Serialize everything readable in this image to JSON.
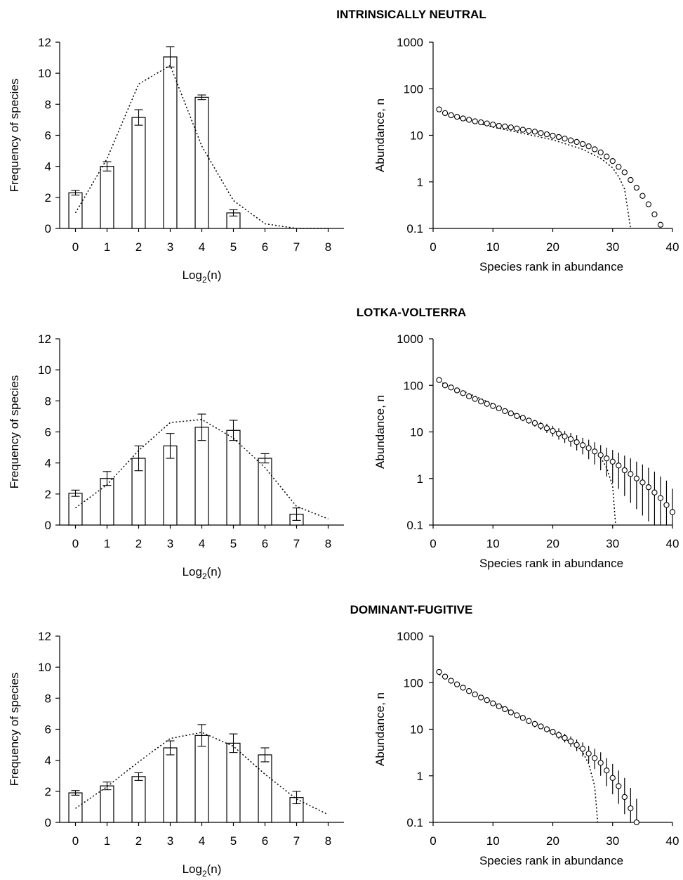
{
  "panels": [
    {
      "title": "INTRINSICALLY NEUTRAL"
    },
    {
      "title": "LOTKA-VOLTERRA"
    },
    {
      "title": "DOMINANT-FUGITIVE"
    }
  ],
  "chart_data": [
    {
      "type": "bar",
      "panel": "INTRINSICALLY NEUTRAL",
      "categories": [
        "0",
        "1",
        "2",
        "3",
        "4",
        "5",
        "6",
        "7",
        "8"
      ],
      "values": [
        2.3,
        4.0,
        7.15,
        11.05,
        8.45,
        1.0,
        null,
        null,
        null
      ],
      "errors": [
        0.15,
        0.3,
        0.5,
        0.65,
        0.15,
        0.2,
        null,
        null,
        null
      ],
      "series": [
        {
          "type": "dotted-line",
          "values": [
            1.0,
            4.5,
            9.3,
            10.5,
            5.3,
            1.8,
            0.3,
            0.0,
            0.0
          ]
        }
      ],
      "xlabel": "Log2(n)",
      "xlabel_base": "Log",
      "xlabel_sub": "2",
      "xlabel_arg": "(n)",
      "ylabel": "Frequency of species",
      "ylim": [
        0,
        12
      ],
      "yticks": [
        "0",
        "2",
        "4",
        "6",
        "8",
        "10",
        "12"
      ],
      "grid": false
    },
    {
      "type": "scatter",
      "panel": "INTRINSICALLY NEUTRAL",
      "x": [
        1,
        2,
        3,
        4,
        5,
        6,
        7,
        8,
        9,
        10,
        11,
        12,
        13,
        14,
        15,
        16,
        17,
        18,
        19,
        20,
        21,
        22,
        23,
        24,
        25,
        26,
        27,
        28,
        29,
        30,
        31,
        32,
        33,
        34,
        35,
        36,
        37,
        38
      ],
      "y": [
        36,
        30,
        27,
        25,
        23,
        21.5,
        20,
        19,
        18,
        17,
        16,
        15.5,
        14.8,
        14,
        13.2,
        12.5,
        12,
        11.2,
        10.5,
        9.8,
        9.2,
        8.5,
        7.8,
        7.2,
        6.5,
        5.8,
        5.0,
        4.3,
        3.5,
        2.8,
        2.1,
        1.6,
        1.1,
        0.75,
        0.5,
        0.33,
        0.2,
        0.12
      ],
      "series": [
        {
          "type": "dotted-line",
          "x": [
            1,
            5,
            10,
            15,
            20,
            25,
            28,
            30,
            31,
            32,
            33
          ],
          "y": [
            33,
            22,
            15,
            11,
            8,
            5,
            3.2,
            2,
            1.3,
            0.7,
            0.1
          ]
        }
      ],
      "xlabel": "Species rank in abundance",
      "ylabel": "Abundance, n",
      "xlim": [
        0,
        40
      ],
      "xticks": [
        "0",
        "10",
        "20",
        "30",
        "40"
      ],
      "ylim": [
        0.1,
        1000
      ],
      "yscale": "log",
      "yticks": [
        "0.1",
        "1",
        "10",
        "100",
        "1000"
      ],
      "grid": false
    },
    {
      "type": "bar",
      "panel": "LOTKA-VOLTERRA",
      "categories": [
        "0",
        "1",
        "2",
        "3",
        "4",
        "5",
        "6",
        "7",
        "8"
      ],
      "values": [
        2.05,
        3.0,
        4.3,
        5.1,
        6.3,
        6.1,
        4.3,
        0.7,
        null
      ],
      "errors": [
        0.2,
        0.45,
        0.8,
        0.8,
        0.85,
        0.65,
        0.3,
        0.4,
        null
      ],
      "series": [
        {
          "type": "dotted-line",
          "values": [
            1.1,
            2.6,
            4.8,
            6.6,
            6.8,
            5.6,
            3.7,
            1.2,
            0.4
          ]
        }
      ],
      "xlabel": "Log2(n)",
      "xlabel_base": "Log",
      "xlabel_sub": "2",
      "xlabel_arg": "(n)",
      "ylabel": "Frequency of species",
      "ylim": [
        0,
        12
      ],
      "yticks": [
        "0",
        "2",
        "4",
        "6",
        "8",
        "10",
        "12"
      ],
      "grid": false
    },
    {
      "type": "scatter",
      "panel": "LOTKA-VOLTERRA",
      "x": [
        1,
        2,
        3,
        4,
        5,
        6,
        7,
        8,
        9,
        10,
        11,
        12,
        13,
        14,
        15,
        16,
        17,
        18,
        19,
        20,
        21,
        22,
        23,
        24,
        25,
        26,
        27,
        28,
        29,
        30,
        31,
        32,
        33,
        34,
        35,
        36,
        37,
        38,
        39,
        40
      ],
      "y": [
        130,
        100,
        90,
        78,
        68,
        58,
        51,
        45,
        40,
        36,
        32,
        28,
        25,
        22,
        20,
        17.5,
        15.5,
        13.5,
        12,
        10.5,
        9.2,
        8,
        7,
        6,
        5.2,
        4.5,
        3.8,
        3.2,
        2.7,
        2.3,
        1.9,
        1.5,
        1.25,
        1.0,
        0.82,
        0.65,
        0.5,
        0.38,
        0.27,
        0.19
      ],
      "y_upper": [
        135,
        105,
        95,
        82,
        72,
        62,
        55,
        48,
        43,
        39,
        35,
        31,
        28,
        25,
        23,
        20,
        18,
        16.5,
        15,
        13.5,
        12,
        10.5,
        9.5,
        8.5,
        7.5,
        6.8,
        6,
        5.2,
        4.6,
        4.1,
        3.6,
        3.1,
        2.7,
        2.3,
        2.0,
        1.7,
        1.4,
        1.1,
        0.9,
        0.6
      ],
      "y_lower": [
        125,
        95,
        85,
        74,
        64,
        54,
        47,
        42,
        37,
        33,
        29,
        25,
        22,
        19.5,
        17,
        15,
        13,
        11,
        9.5,
        8,
        6.8,
        5.8,
        4.8,
        4,
        3.3,
        2.6,
        2,
        1.5,
        1.1,
        0.8,
        0.6,
        0.42,
        0.3,
        0.22,
        0.16,
        0.12,
        0.1,
        0.1,
        0.1,
        0.1
      ],
      "series": [
        {
          "type": "dotted-line",
          "x": [
            1,
            5,
            10,
            15,
            20,
            25,
            27,
            28,
            29,
            30,
            30.5
          ],
          "y": [
            120,
            75,
            40,
            20,
            11,
            5.5,
            3.8,
            2.8,
            1.7,
            0.7,
            0.1
          ]
        }
      ],
      "xlabel": "Species rank in abundance",
      "ylabel": "Abundance, n",
      "xlim": [
        0,
        40
      ],
      "xticks": [
        "0",
        "10",
        "20",
        "30",
        "40"
      ],
      "ylim": [
        0.1,
        1000
      ],
      "yscale": "log",
      "yticks": [
        "0.1",
        "1",
        "10",
        "100",
        "1000"
      ],
      "grid": false
    },
    {
      "type": "bar",
      "panel": "DOMINANT-FUGITIVE",
      "categories": [
        "0",
        "1",
        "2",
        "3",
        "4",
        "5",
        "6",
        "7",
        "8"
      ],
      "values": [
        1.9,
        2.35,
        2.95,
        4.8,
        5.6,
        5.1,
        4.35,
        1.6,
        null
      ],
      "errors": [
        0.15,
        0.25,
        0.25,
        0.45,
        0.7,
        0.6,
        0.45,
        0.4,
        null
      ],
      "series": [
        {
          "type": "dotted-line",
          "values": [
            0.9,
            2.3,
            3.9,
            5.4,
            5.8,
            4.9,
            3.1,
            1.5,
            0.5
          ]
        }
      ],
      "xlabel": "Log2(n)",
      "xlabel_base": "Log",
      "xlabel_sub": "2",
      "xlabel_arg": "(n)",
      "ylabel": "Frequency of species",
      "ylim": [
        0,
        12
      ],
      "yticks": [
        "0",
        "2",
        "4",
        "6",
        "8",
        "10",
        "12"
      ],
      "grid": false
    },
    {
      "type": "scatter",
      "panel": "DOMINANT-FUGITIVE",
      "x": [
        1,
        2,
        3,
        4,
        5,
        6,
        7,
        8,
        9,
        10,
        11,
        12,
        13,
        14,
        15,
        16,
        17,
        18,
        19,
        20,
        21,
        22,
        23,
        24,
        25,
        26,
        27,
        28,
        29,
        30,
        31,
        32,
        33,
        34
      ],
      "y": [
        170,
        135,
        110,
        92,
        78,
        66,
        56,
        48,
        42,
        36,
        31,
        27,
        23,
        20,
        17.5,
        15,
        13,
        11.5,
        10,
        8.8,
        7.5,
        6.5,
        5.5,
        4.6,
        3.8,
        3.0,
        2.4,
        1.9,
        1.3,
        0.9,
        0.6,
        0.35,
        0.2,
        0.1
      ],
      "y_upper": [
        180,
        145,
        118,
        98,
        84,
        71,
        60,
        52,
        45,
        39,
        34,
        29,
        25,
        22,
        19.5,
        17,
        15,
        13,
        11.5,
        10.2,
        9,
        8,
        7,
        6,
        5.2,
        4.4,
        3.8,
        3.2,
        2.4,
        1.8,
        1.3,
        0.9,
        0.55,
        0.32
      ],
      "y_lower": [
        160,
        125,
        102,
        86,
        72,
        61,
        52,
        44,
        39,
        33,
        28,
        25,
        21,
        18,
        15.5,
        13,
        11,
        10,
        8.6,
        7.4,
        6.2,
        5.2,
        4.2,
        3.4,
        2.6,
        1.9,
        1.4,
        1.0,
        0.6,
        0.4,
        0.25,
        0.15,
        0.1,
        0.1
      ],
      "series": [
        {
          "type": "dotted-line",
          "x": [
            1,
            5,
            10,
            15,
            20,
            24,
            25,
            26,
            27,
            27.5
          ],
          "y": [
            150,
            80,
            38,
            18,
            8.5,
            4.5,
            3.2,
            1.8,
            0.6,
            0.1
          ]
        }
      ],
      "xlabel": "Species rank in abundance",
      "ylabel": "Abundance, n",
      "xlim": [
        0,
        40
      ],
      "xticks": [
        "0",
        "10",
        "20",
        "30",
        "40"
      ],
      "ylim": [
        0.1,
        1000
      ],
      "yscale": "log",
      "yticks": [
        "0.1",
        "1",
        "10",
        "100",
        "1000"
      ],
      "grid": false
    }
  ]
}
